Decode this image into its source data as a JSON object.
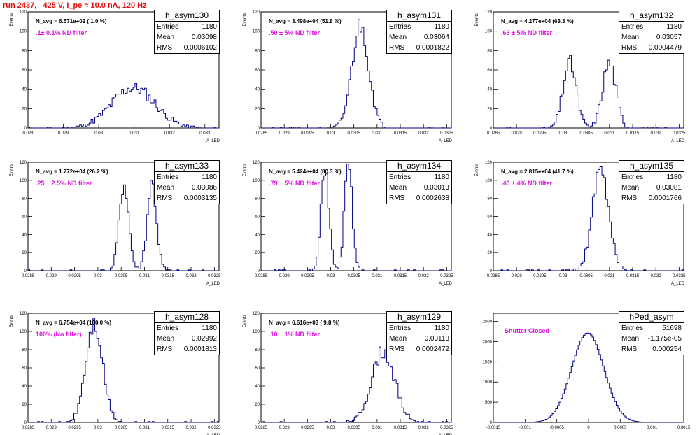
{
  "title": "run 2437,   425 V, I_pe ≈ 10.0 nA, 120 Hz",
  "colors": {
    "hist": "#000080",
    "title": "#e01010",
    "annotation": "#e010e0"
  },
  "chart_data": [
    {
      "type": "bar",
      "name": "h_asym130",
      "nav": "N_avg = 6.571e+02 ( 1.0 %)",
      "filter": ".1± 0.1% ND filter",
      "stats": {
        "entries": "1180",
        "mean": "0.03098",
        "rms": "0.0006102"
      },
      "xlabel": "A_LED",
      "ylabel": "Events",
      "xlim": [
        0.028,
        0.0334
      ],
      "ylim": [
        0,
        120
      ],
      "xticks": [
        "0.028",
        "0.029",
        "0.03",
        "0.031",
        "0.032",
        "0.033"
      ],
      "xtick_values": [
        0.028,
        0.029,
        0.03,
        0.031,
        0.032,
        0.033
      ],
      "yticks": [
        "0",
        "20",
        "40",
        "60",
        "80",
        "100",
        "120"
      ],
      "mean": 0.03098,
      "rms": 0.0006102,
      "entries": 1180,
      "shape": "gauss",
      "seed": 11
    },
    {
      "type": "bar",
      "name": "h_asym131",
      "nav": "N_avg = 3.498e+04 (51.8 %)",
      "filter": ".50 ± 5% ND filter",
      "stats": {
        "entries": "1180",
        "mean": "0.03064",
        "rms": "0.0001822"
      },
      "xlabel": "A_LED",
      "ylabel": "Events",
      "xlim": [
        0.0285,
        0.0326
      ],
      "ylim": [
        0,
        120
      ],
      "xticks": [
        "0.0285",
        "0.029",
        "0.0295",
        "0.03",
        "0.0305",
        "0.031",
        "0.0315",
        "0.032",
        "0.0325"
      ],
      "xtick_values": [
        0.0285,
        0.029,
        0.0295,
        0.03,
        0.0305,
        0.031,
        0.0315,
        0.032,
        0.0325
      ],
      "yticks": [
        "0",
        "20",
        "40",
        "60",
        "80",
        "100",
        "120"
      ],
      "mean": 0.03064,
      "rms": 0.0001822,
      "entries": 1180,
      "shape": "gauss",
      "seed": 21
    },
    {
      "type": "bar",
      "name": "h_asym132",
      "nav": "N_avg = 4.277e+04 (63.3 %)",
      "filter": ".63 ± 5% ND filter",
      "stats": {
        "entries": "1180",
        "mean": "0.03057",
        "rms": "0.0004479"
      },
      "xlabel": "A_LED",
      "ylabel": "Events",
      "xlim": [
        0.0285,
        0.0326
      ],
      "ylim": [
        0,
        120
      ],
      "xticks": [
        "0.0285",
        "0.029",
        "0.0295",
        "0.03",
        "0.0305",
        "0.031",
        "0.0315",
        "0.032",
        "0.0325"
      ],
      "xtick_values": [
        0.0285,
        0.029,
        0.0295,
        0.03,
        0.0305,
        0.031,
        0.0315,
        0.032,
        0.0325
      ],
      "yticks": [
        "0",
        "20",
        "40",
        "60",
        "80",
        "100",
        "120"
      ],
      "mean": 0.03057,
      "rms": 0.0004479,
      "entries": 1180,
      "shape": "double",
      "seed": 31
    },
    {
      "type": "bar",
      "name": "h_asym133",
      "nav": "N_avg = 1.772e+04 (26.2 %)",
      "filter": ".25 ± 2.5% ND filter",
      "stats": {
        "entries": "1180",
        "mean": "0.03086",
        "rms": "0.0003135"
      },
      "xlabel": "A_LED",
      "ylabel": "Events",
      "xlim": [
        0.0285,
        0.0326
      ],
      "ylim": [
        0,
        120
      ],
      "xticks": [
        "0.0285",
        "0.029",
        "0.0295",
        "0.03",
        "0.0305",
        "0.031",
        "0.0315",
        "0.032",
        "0.0325"
      ],
      "xtick_values": [
        0.0285,
        0.029,
        0.0295,
        0.03,
        0.0305,
        0.031,
        0.0315,
        0.032,
        0.0325
      ],
      "yticks": [
        "0",
        "20",
        "40",
        "60",
        "80",
        "100",
        "120"
      ],
      "mean": 0.03086,
      "rms": 0.0003135,
      "entries": 1180,
      "shape": "double",
      "seed": 41
    },
    {
      "type": "bar",
      "name": "h_asym134",
      "nav": "N_avg = 5.424e+04 (80.3 %)",
      "filter": ".79 ± 5% ND filter",
      "stats": {
        "entries": "1180",
        "mean": "0.03013",
        "rms": "0.0002638"
      },
      "xlabel": "A_LED",
      "ylabel": "Events",
      "xlim": [
        0.0285,
        0.0326
      ],
      "ylim": [
        0,
        120
      ],
      "xticks": [
        "0.0285",
        "0.029",
        "0.0295",
        "0.03",
        "0.0305",
        "0.031",
        "0.0315",
        "0.032",
        "0.0325"
      ],
      "xtick_values": [
        0.0285,
        0.029,
        0.0295,
        0.03,
        0.0305,
        0.031,
        0.0315,
        0.032,
        0.0325
      ],
      "yticks": [
        "0",
        "20",
        "40",
        "60",
        "80",
        "100",
        "120"
      ],
      "mean": 0.03013,
      "rms": 0.0002638,
      "entries": 1180,
      "shape": "double",
      "seed": 51
    },
    {
      "type": "bar",
      "name": "h_asym135",
      "nav": "N_avg = 2.815e+04 (41.7 %)",
      "filter": ".40 ± 4% ND filter",
      "stats": {
        "entries": "1180",
        "mean": "0.03081",
        "rms": "0.0001766"
      },
      "xlabel": "A_LED",
      "ylabel": "Events",
      "xlim": [
        0.0285,
        0.0326
      ],
      "ylim": [
        0,
        120
      ],
      "xticks": [
        "0.0285",
        "0.029",
        "0.0295",
        "0.03",
        "0.0305",
        "0.031",
        "0.0315",
        "0.032",
        "0.0325"
      ],
      "xtick_values": [
        0.0285,
        0.029,
        0.0295,
        0.03,
        0.0305,
        0.031,
        0.0315,
        0.032,
        0.0325
      ],
      "yticks": [
        "0",
        "20",
        "40",
        "60",
        "80",
        "100",
        "120"
      ],
      "mean": 0.03081,
      "rms": 0.0001766,
      "entries": 1180,
      "shape": "gauss",
      "seed": 61
    },
    {
      "type": "bar",
      "name": "h_asym128",
      "nav": "N_avg = 6.754e+04 (100.0 %)",
      "filter": "100% (No filter)",
      "stats": {
        "entries": "1180",
        "mean": "0.02992",
        "rms": "0.0001813"
      },
      "xlabel": "A_LED",
      "ylabel": "Events",
      "xlim": [
        0.0285,
        0.0326
      ],
      "ylim": [
        0,
        120
      ],
      "xticks": [
        "0.0285",
        "0.029",
        "0.0295",
        "0.03",
        "0.0305",
        "0.031",
        "0.0315",
        "0.032",
        "0.0325"
      ],
      "xtick_values": [
        0.0285,
        0.029,
        0.0295,
        0.03,
        0.0305,
        0.031,
        0.0315,
        0.032,
        0.0325
      ],
      "yticks": [
        "0",
        "20",
        "40",
        "60",
        "80",
        "100",
        "120"
      ],
      "mean": 0.02992,
      "rms": 0.0001813,
      "entries": 1180,
      "shape": "gauss",
      "seed": 71
    },
    {
      "type": "bar",
      "name": "h_asym129",
      "nav": "N_avg = 6.616e+03 ( 9.8 %)",
      "filter": ".10 ± 1% ND filter",
      "stats": {
        "entries": "1180",
        "mean": "0.03113",
        "rms": "0.0002472"
      },
      "xlabel": "A_LED",
      "ylabel": "Events",
      "xlim": [
        0.0285,
        0.0326
      ],
      "ylim": [
        0,
        120
      ],
      "xticks": [
        "0.0285",
        "0.029",
        "0.0295",
        "0.03",
        "0.0305",
        "0.031",
        "0.0315",
        "0.032",
        "0.0325"
      ],
      "xtick_values": [
        0.0285,
        0.029,
        0.0295,
        0.03,
        0.0305,
        0.031,
        0.0315,
        0.032,
        0.0325
      ],
      "yticks": [
        "0",
        "20",
        "40",
        "60",
        "80",
        "100",
        "120"
      ],
      "mean": 0.03113,
      "rms": 0.0002472,
      "entries": 1180,
      "shape": "gauss",
      "seed": 81
    },
    {
      "type": "bar",
      "name": "hPed_asym",
      "nav": "",
      "filter": "Shutter Closed",
      "stats": {
        "entries": "51698",
        "mean": "-1.175e-05",
        "rms": "0.000254"
      },
      "xlabel": "",
      "ylabel": "",
      "xlim": [
        -0.0015,
        0.0015
      ],
      "ylim": [
        0,
        2700
      ],
      "xticks": [
        "-0.0015",
        "-0.001",
        "-0.0005",
        "0",
        "0.0005",
        "0.001",
        "0.0015"
      ],
      "xtick_values": [
        -0.0015,
        -0.001,
        -0.0005,
        0,
        0.0005,
        0.001,
        0.0015
      ],
      "yticks": [
        "0",
        "500",
        "1000",
        "1500",
        "2000",
        "2500"
      ],
      "mean": -1.175e-05,
      "rms": 0.000254,
      "entries": 51698,
      "shape": "smooth",
      "seed": 91
    }
  ]
}
